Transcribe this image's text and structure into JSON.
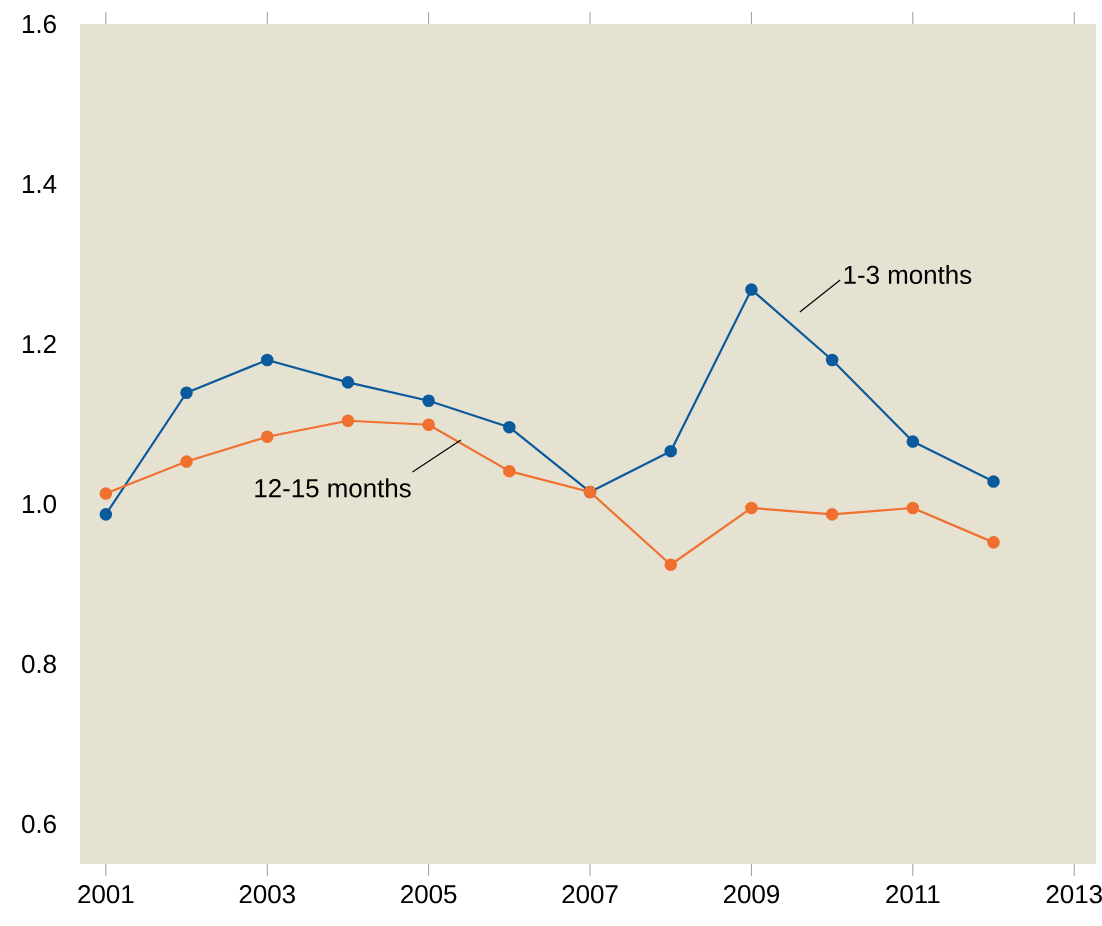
{
  "chart_data": {
    "type": "line",
    "x": [
      2001,
      2002,
      2003,
      2004,
      2005,
      2006,
      2007,
      2008,
      2009,
      2010,
      2011,
      2012
    ],
    "series": [
      {
        "name": "1-3 months",
        "color": "#0a5a9c",
        "values": [
          0.987,
          1.139,
          1.18,
          1.152,
          1.129,
          1.096,
          1.015,
          1.066,
          1.268,
          1.18,
          1.078,
          1.028
        ]
      },
      {
        "name": "12-15 months",
        "color": "#f07030",
        "values": [
          1.013,
          1.053,
          1.084,
          1.104,
          1.099,
          1.041,
          1.015,
          0.924,
          0.995,
          0.987,
          0.995,
          0.952
        ]
      }
    ],
    "xlim": [
      2000.68,
      2013.27
    ],
    "ylim": [
      0.55,
      1.6
    ],
    "xticks": [
      2001,
      2003,
      2005,
      2007,
      2009,
      2011,
      2013
    ],
    "yticks": [
      0.6,
      0.8,
      {
        "value": 1.0,
        "label": "1.0"
      },
      1.2,
      1.4,
      1.6
    ],
    "marker": "circle",
    "line_style": "solid",
    "grid": false,
    "legend": false
  }
}
